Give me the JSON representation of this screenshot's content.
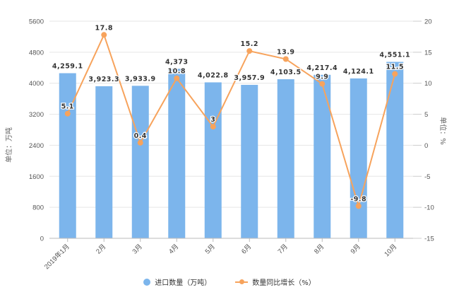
{
  "chart_data": {
    "type": "bar+line",
    "title": "",
    "categories": [
      "2019年1月",
      "2月",
      "3月",
      "4月",
      "5月",
      "6月",
      "7月",
      "8月",
      "9月",
      "10月"
    ],
    "series": [
      {
        "name": "进口数量（万吨）",
        "type": "bar",
        "axis": "left",
        "color": "#7cb5ec",
        "values": [
          4259.1,
          3923.3,
          3933.9,
          4373,
          4022.8,
          3957.9,
          4103.5,
          4217.4,
          4124.1,
          4551.1
        ],
        "labels": [
          "4,259.1",
          "3,923.3",
          "3,933.9",
          "4,373",
          "4,022.8",
          "3,957.9",
          "4,103.5",
          "4,217.4",
          "4,124.1",
          "4,551.1"
        ]
      },
      {
        "name": "数量同比增长（%）",
        "type": "line",
        "axis": "right",
        "color": "#f7a35c",
        "values": [
          5.1,
          17.8,
          0.4,
          10.8,
          3,
          15.2,
          13.9,
          9.9,
          -9.8,
          11.5
        ],
        "labels": [
          "5.1",
          "17.8",
          "0.4",
          "10.8",
          "3",
          "15.2",
          "13.9",
          "9.9",
          "-9.8",
          "11.5"
        ]
      }
    ],
    "y_left": {
      "label": "单位：万吨",
      "ticks": [
        0,
        800,
        1600,
        2400,
        3200,
        4000,
        4800,
        5600
      ],
      "range": [
        0,
        5600
      ]
    },
    "y_right": {
      "label": "单位：%",
      "ticks": [
        -15,
        -10,
        -5,
        0,
        5,
        10,
        15,
        20
      ],
      "range": [
        -15,
        20
      ]
    },
    "xlabel": "",
    "grid": true,
    "legend_position": "bottom"
  },
  "legend": {
    "items": [
      {
        "label": "进口数量（万吨）",
        "color": "#7cb5ec",
        "marker": "circle"
      },
      {
        "label": "数量同比增长（%）",
        "color": "#f7a35c",
        "marker": "line"
      }
    ]
  }
}
